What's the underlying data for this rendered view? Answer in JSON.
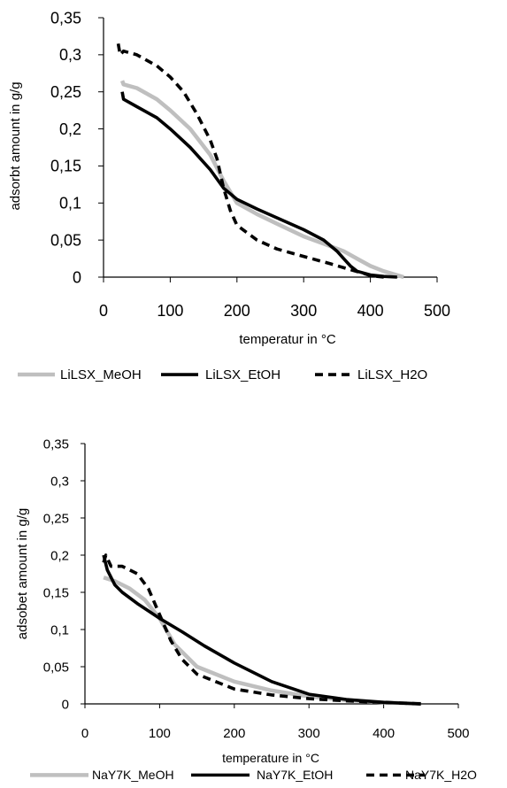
{
  "chart_data": [
    {
      "type": "line",
      "xlabel": "temperatur in °C",
      "ylabel": "adsorbt amount in g/g",
      "xlim": [
        0,
        500
      ],
      "ylim": [
        0,
        0.35
      ],
      "xticks": [
        "0",
        "100",
        "200",
        "300",
        "400",
        "500"
      ],
      "yticks": [
        "0",
        "0,05",
        "0,1",
        "0,15",
        "0,2",
        "0,25",
        "0,3",
        "0,35"
      ],
      "grid": false,
      "legend_placement": "bottom",
      "series": [
        {
          "name": "LiLSX_MeOH",
          "color": "#bfbfbf",
          "dash": "solid",
          "x": [
            28,
            30,
            50,
            80,
            100,
            130,
            160,
            180,
            200,
            230,
            260,
            300,
            330,
            360,
            380,
            400,
            420,
            450
          ],
          "y": [
            0.265,
            0.26,
            0.255,
            0.24,
            0.225,
            0.2,
            0.165,
            0.13,
            0.1,
            0.085,
            0.072,
            0.055,
            0.045,
            0.035,
            0.025,
            0.015,
            0.008,
            0.0
          ]
        },
        {
          "name": "LiLSX_EtOH",
          "color": "#000000",
          "dash": "solid",
          "x": [
            28,
            30,
            50,
            80,
            100,
            130,
            160,
            180,
            200,
            230,
            260,
            300,
            330,
            350,
            360,
            370,
            380,
            400,
            420,
            440
          ],
          "y": [
            0.25,
            0.24,
            0.23,
            0.215,
            0.2,
            0.175,
            0.145,
            0.12,
            0.105,
            0.092,
            0.08,
            0.064,
            0.05,
            0.035,
            0.025,
            0.015,
            0.008,
            0.003,
            0.001,
            0.0
          ]
        },
        {
          "name": "LiLSX_H2O",
          "color": "#000000",
          "dash": "dashed",
          "x": [
            22,
            25,
            30,
            50,
            80,
            100,
            120,
            140,
            160,
            170,
            180,
            190,
            200,
            230,
            260,
            300,
            340,
            370,
            390,
            400,
            420
          ],
          "y": [
            0.315,
            0.3,
            0.305,
            0.3,
            0.285,
            0.27,
            0.25,
            0.22,
            0.185,
            0.16,
            0.12,
            0.09,
            0.07,
            0.05,
            0.038,
            0.028,
            0.018,
            0.01,
            0.005,
            0.002,
            0.0
          ]
        }
      ]
    },
    {
      "type": "line",
      "xlabel": "temperature  in °C",
      "ylabel": "adsobet amount in g/g",
      "xlim": [
        0,
        500
      ],
      "ylim": [
        0,
        0.35
      ],
      "xticks": [
        "0",
        "100",
        "200",
        "300",
        "400",
        "500"
      ],
      "yticks": [
        "0",
        "0,05",
        "0,1",
        "0,15",
        "0,2",
        "0,25",
        "0,3",
        "0,35"
      ],
      "grid": false,
      "legend_placement": "bottom",
      "series": [
        {
          "name": "NaY7K_MeOH",
          "color": "#bfbfbf",
          "dash": "solid",
          "x": [
            25,
            40,
            60,
            80,
            100,
            120,
            150,
            200,
            250,
            300,
            350,
            400,
            450
          ],
          "y": [
            0.17,
            0.165,
            0.155,
            0.14,
            0.115,
            0.08,
            0.05,
            0.03,
            0.018,
            0.01,
            0.005,
            0.002,
            0.0
          ]
        },
        {
          "name": "NaY7K_EtOH",
          "color": "#000000",
          "dash": "solid",
          "x": [
            25,
            30,
            40,
            50,
            70,
            100,
            130,
            160,
            200,
            250,
            300,
            350,
            400,
            450
          ],
          "y": [
            0.2,
            0.18,
            0.16,
            0.15,
            0.135,
            0.115,
            0.097,
            0.078,
            0.055,
            0.03,
            0.013,
            0.006,
            0.002,
            0.0
          ]
        },
        {
          "name": "NaY7K_H2O",
          "color": "#000000",
          "dash": "dashed",
          "x": [
            25,
            28,
            35,
            50,
            70,
            85,
            100,
            115,
            130,
            150,
            200,
            250,
            300,
            350,
            400,
            450
          ],
          "y": [
            0.19,
            0.2,
            0.185,
            0.185,
            0.175,
            0.155,
            0.12,
            0.085,
            0.06,
            0.04,
            0.02,
            0.012,
            0.007,
            0.004,
            0.002,
            0.0
          ]
        }
      ]
    }
  ]
}
